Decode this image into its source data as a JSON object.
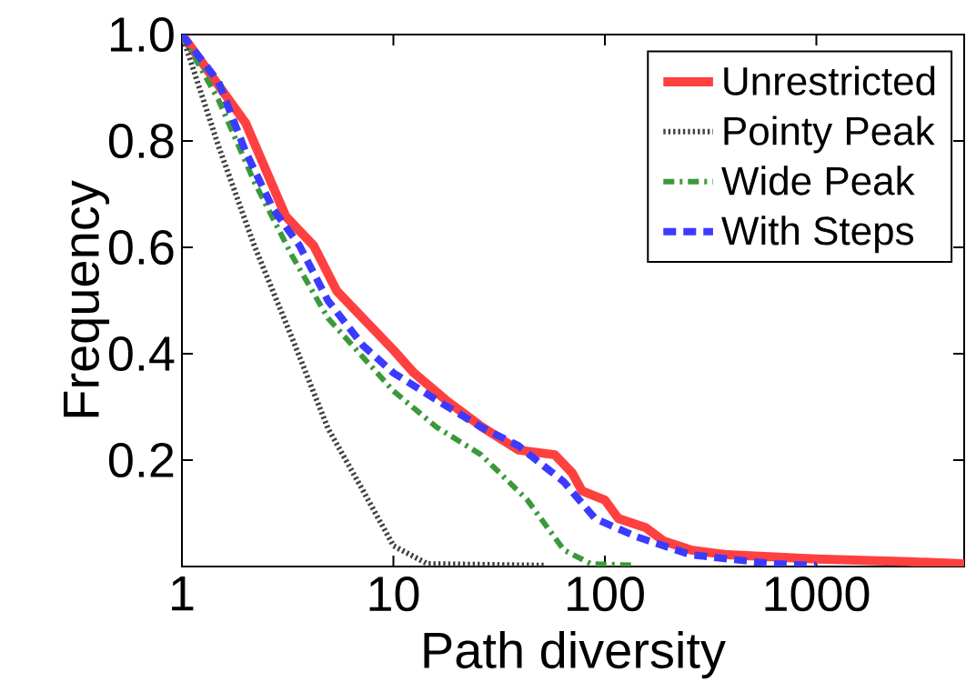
{
  "chart_data": {
    "type": "line",
    "xlabel": "Path diversity",
    "ylabel": "Frequency",
    "log": "x",
    "grid": false,
    "legend": "top right",
    "marker": "none",
    "xlim": [
      1,
      5000
    ],
    "ylim": [
      0,
      1
    ],
    "xticks": [
      1,
      10,
      100,
      1000
    ],
    "yticks": [
      0.2,
      0.4,
      0.6,
      0.8,
      {
        "value": 1.0,
        "label": "1.0"
      }
    ],
    "series": [
      {
        "name": "Unrestricted",
        "color": "#ff4040",
        "line_style": "solid",
        "x": [
          1,
          2,
          3.1,
          4.2,
          5.4,
          10,
          12.5,
          17.7,
          26.3,
          39,
          58,
          70,
          78,
          100,
          116,
          156,
          190,
          255,
          380,
          1000,
          2770,
          5000
        ],
        "values": [
          1,
          0.834,
          0.658,
          0.603,
          0.518,
          0.407,
          0.364,
          0.313,
          0.262,
          0.219,
          0.21,
          0.176,
          0.142,
          0.125,
          0.09,
          0.073,
          0.048,
          0.031,
          0.022,
          0.014,
          0.009,
          0.005
        ]
      },
      {
        "name": "Pointy Peak",
        "color": "#404040",
        "line_style": "dotted",
        "x": [
          1,
          1.49,
          2.2,
          3.3,
          4.9,
          7.2,
          10,
          14.5,
          52
        ],
        "values": [
          1,
          0.79,
          0.603,
          0.432,
          0.26,
          0.142,
          0.039,
          0.005,
          0.002
        ]
      },
      {
        "name": "Wide Peak",
        "color": "#3a9a3a",
        "line_style": "dashdot",
        "x": [
          1,
          1.49,
          2.2,
          3.3,
          4.9,
          10,
          16,
          26,
          43,
          64,
          86,
          141
        ],
        "values": [
          1,
          0.877,
          0.723,
          0.586,
          0.467,
          0.33,
          0.262,
          0.21,
          0.125,
          0.031,
          0.005,
          0.002
        ]
      },
      {
        "name": "With Steps",
        "color": "#3b3bff",
        "line_style": "dashed",
        "x": [
          1,
          1.49,
          2,
          2.7,
          3.6,
          4.9,
          7.2,
          10,
          16,
          26,
          39,
          64,
          90,
          141,
          255,
          625,
          1000
        ],
        "values": [
          1,
          0.911,
          0.78,
          0.672,
          0.603,
          0.5,
          0.415,
          0.364,
          0.313,
          0.262,
          0.227,
          0.159,
          0.09,
          0.056,
          0.022,
          0.005,
          0.002
        ]
      }
    ]
  }
}
